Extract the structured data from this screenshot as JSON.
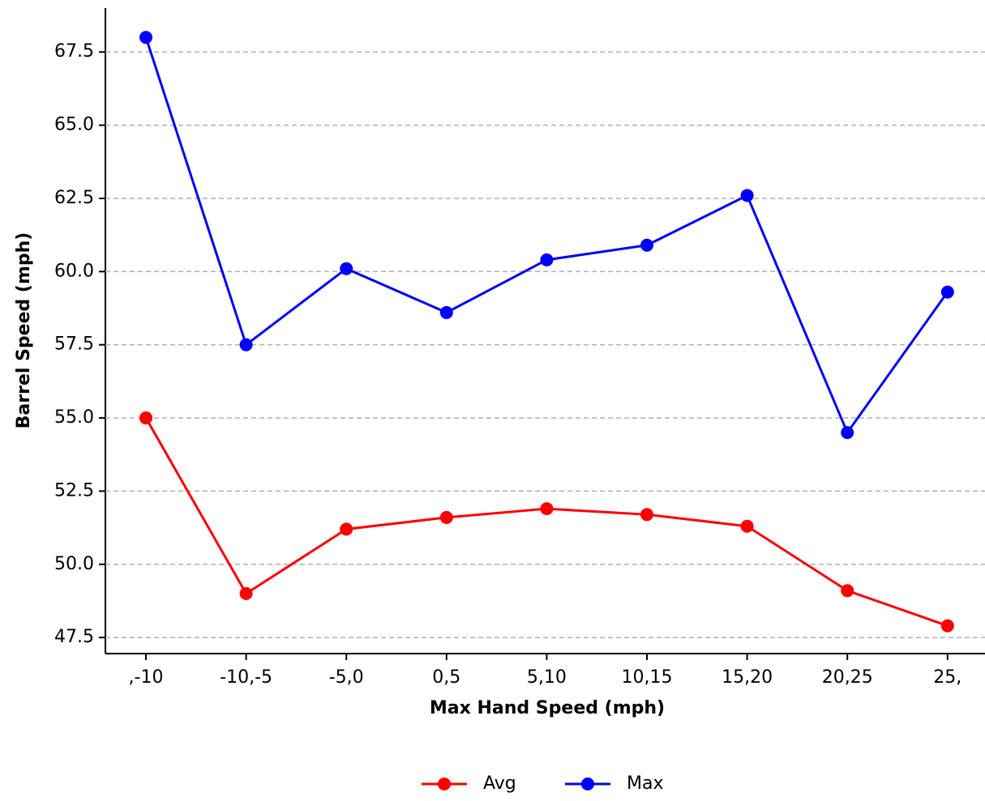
{
  "chart_data": {
    "type": "line",
    "x_label": "Max Hand Speed (mph)",
    "y_label": "Barrel Speed (mph)",
    "categories": [
      ",-10",
      "-10,-5",
      "-5,0",
      "0,5",
      "5,10",
      "10,15",
      "15,20",
      "20,25",
      "25,"
    ],
    "series": [
      {
        "name": "Avg",
        "color": "#ff0000",
        "values": [
          55.0,
          49.0,
          51.2,
          51.6,
          51.9,
          51.7,
          51.3,
          49.1,
          47.9
        ]
      },
      {
        "name": "Max",
        "color": "#0000ff",
        "values": [
          68.0,
          57.5,
          60.1,
          58.6,
          60.4,
          60.9,
          62.6,
          54.5,
          59.3
        ]
      }
    ],
    "ylim": [
      46.95,
      69.0
    ],
    "yticks": [
      47.5,
      {
        "value": 50,
        "label": "50.0"
      },
      52.5,
      {
        "value": 55,
        "label": "55.0"
      },
      57.5,
      {
        "value": 60,
        "label": "60.0"
      },
      62.5,
      {
        "value": 65,
        "label": "65.0"
      },
      67.5
    ],
    "grid": true,
    "legend": "bottom"
  }
}
